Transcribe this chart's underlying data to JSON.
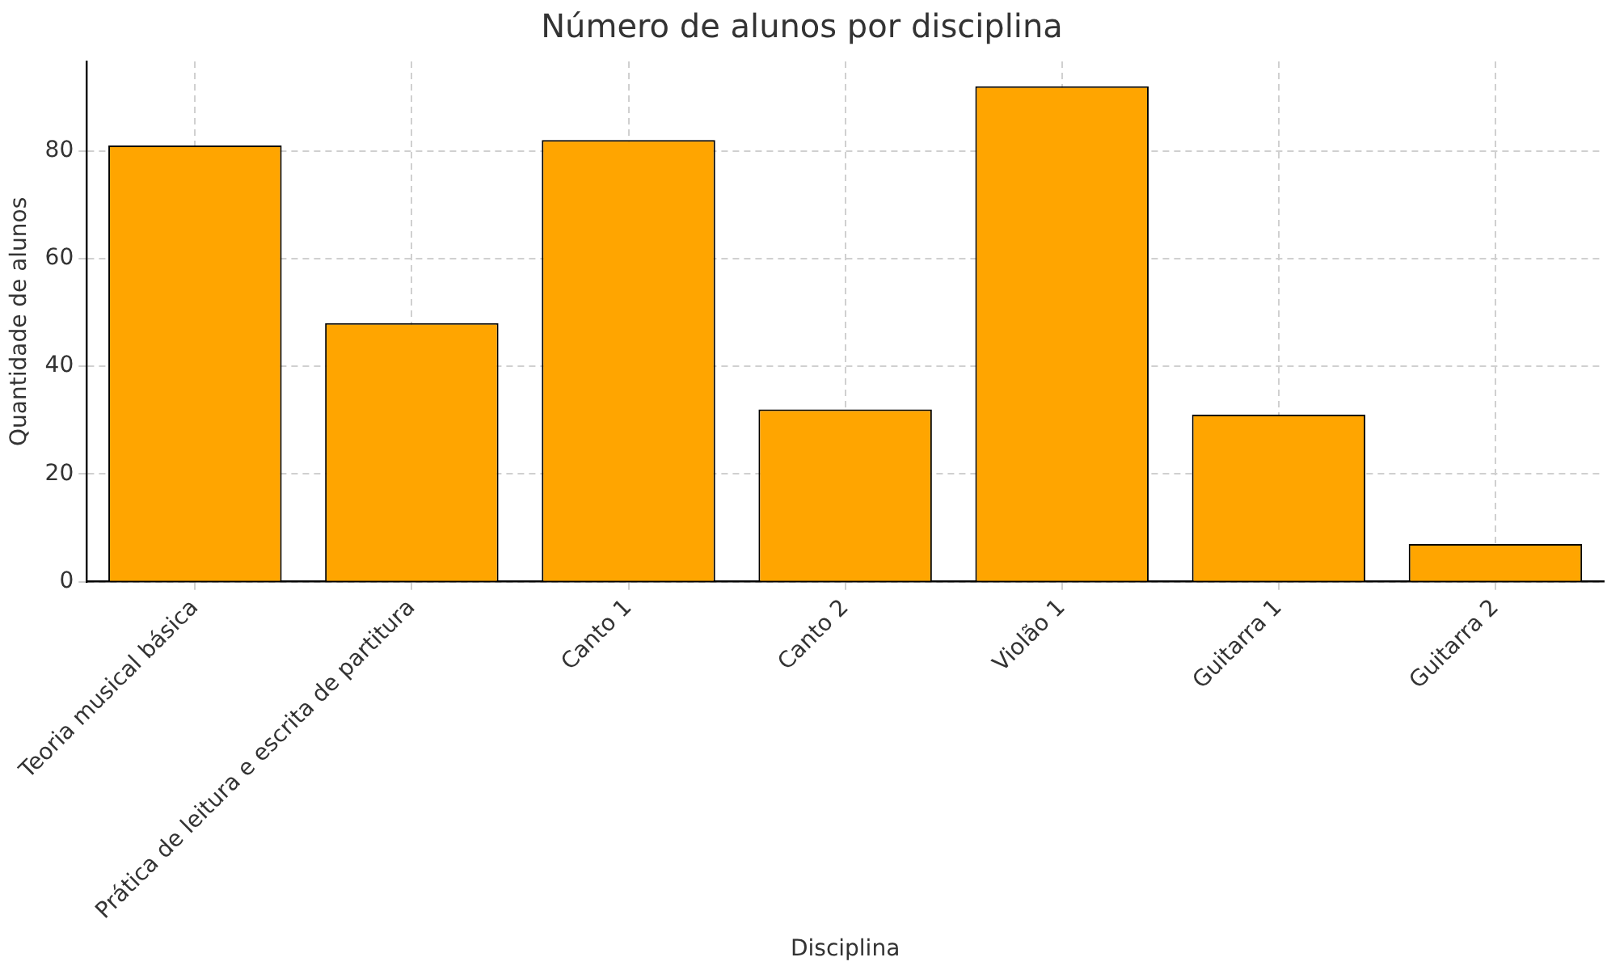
{
  "chart_data": {
    "type": "bar",
    "title": "Número de alunos por disciplina",
    "xlabel": "Disciplina",
    "ylabel": "Quantidade de alunos",
    "categories": [
      "Teoria musical básica",
      "Prática de leitura e escrita de partitura",
      "Canto 1",
      "Canto 2",
      "Violão 1",
      "Guitarra 1",
      "Guitarra 2"
    ],
    "values": [
      81,
      48,
      82,
      32,
      92,
      31,
      7
    ],
    "color": "#ffa500",
    "ylim": [
      0,
      96.6
    ],
    "yticks": [
      0,
      20,
      40,
      60,
      80
    ],
    "grid": true
  }
}
